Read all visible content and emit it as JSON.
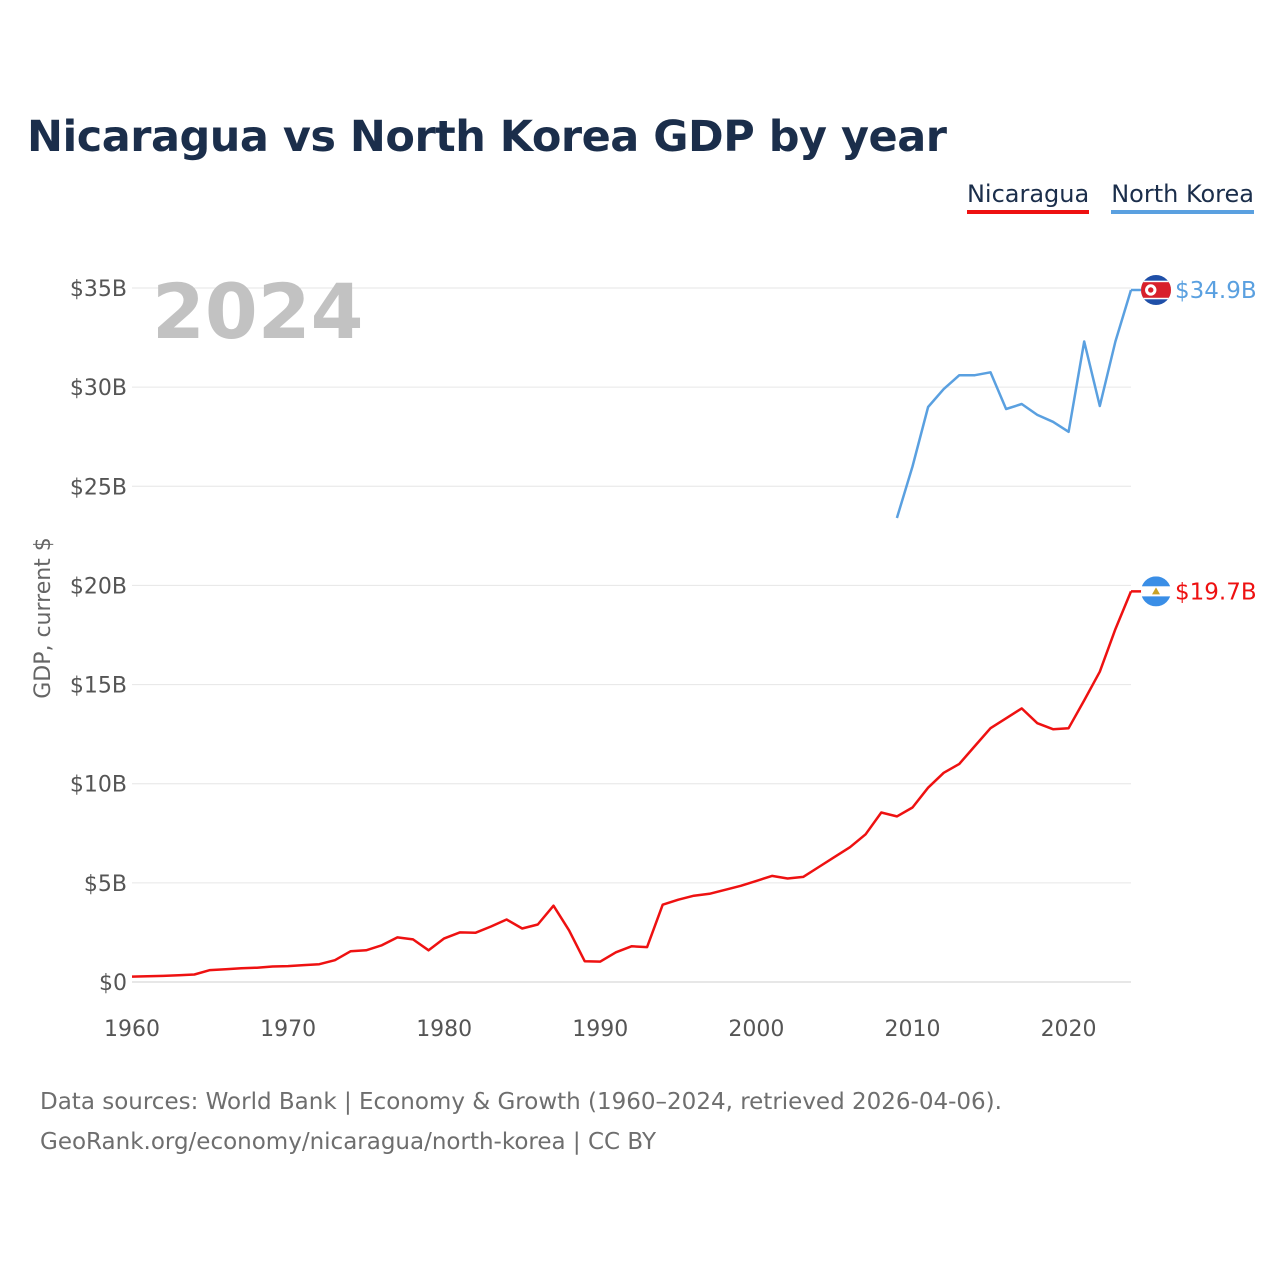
{
  "title": "Nicaragua vs North Korea GDP by year",
  "legend": [
    {
      "label": "Nicaragua",
      "color": "#ee1111"
    },
    {
      "label": "North Korea",
      "color": "#5aa0e0"
    }
  ],
  "footer": {
    "line1": "Data sources: World Bank | Economy & Growth (1960–2024, retrieved 2026-04-06).",
    "line2": "GeoRank.org/economy/nicaragua/north-korea | CC BY"
  },
  "chart_data": {
    "type": "line",
    "title": "Nicaragua vs North Korea GDP by year",
    "xlabel": "",
    "ylabel": "GDP, current $",
    "xlim": [
      1960,
      2024
    ],
    "ylim": [
      0,
      35
    ],
    "yunit": "billions USD",
    "yticks": [
      0,
      5,
      10,
      15,
      20,
      25,
      30,
      35
    ],
    "ytick_labels": [
      "$0",
      "$5B",
      "$10B",
      "$15B",
      "$20B",
      "$25B",
      "$30B",
      "$35B"
    ],
    "xticks": [
      1960,
      1970,
      1980,
      1990,
      2000,
      2010,
      2020
    ],
    "xtick_labels": [
      "1960",
      "1970",
      "1980",
      "1990",
      "2000",
      "2010",
      "2020"
    ],
    "year_display": "2024",
    "grid": true,
    "series": [
      {
        "name": "Nicaragua",
        "color": "#ee1111",
        "end_label": "$19.7B",
        "flag": "nicaragua-flag",
        "x": [
          1960,
          1961,
          1962,
          1963,
          1964,
          1965,
          1966,
          1967,
          1968,
          1969,
          1970,
          1971,
          1972,
          1973,
          1974,
          1975,
          1976,
          1977,
          1978,
          1979,
          1980,
          1981,
          1982,
          1983,
          1984,
          1985,
          1986,
          1987,
          1988,
          1989,
          1990,
          1991,
          1992,
          1993,
          1994,
          1995,
          1996,
          1997,
          1998,
          1999,
          2000,
          2001,
          2002,
          2003,
          2004,
          2005,
          2006,
          2007,
          2008,
          2009,
          2010,
          2011,
          2012,
          2013,
          2014,
          2015,
          2016,
          2017,
          2018,
          2019,
          2020,
          2021,
          2022,
          2023,
          2024
        ],
        "values": [
          0.27,
          0.29,
          0.31,
          0.34,
          0.38,
          0.6,
          0.64,
          0.69,
          0.72,
          0.78,
          0.8,
          0.85,
          0.9,
          1.1,
          1.55,
          1.6,
          1.85,
          2.25,
          2.15,
          1.6,
          2.2,
          2.5,
          2.48,
          2.8,
          3.15,
          2.7,
          2.9,
          3.85,
          2.6,
          1.05,
          1.03,
          1.5,
          1.8,
          1.76,
          3.9,
          4.15,
          4.35,
          4.45,
          4.65,
          4.85,
          5.1,
          5.35,
          5.22,
          5.3,
          5.8,
          6.3,
          6.8,
          7.45,
          8.55,
          8.35,
          8.8,
          9.8,
          10.55,
          11.0,
          11.9,
          12.8,
          13.3,
          13.8,
          13.05,
          12.75,
          12.8,
          14.2,
          15.65,
          17.8,
          19.7
        ]
      },
      {
        "name": "North Korea",
        "color": "#5aa0e0",
        "end_label": "$34.9B",
        "flag": "north-korea-flag",
        "x": [
          2009,
          2010,
          2011,
          2012,
          2013,
          2014,
          2015,
          2016,
          2017,
          2018,
          2019,
          2020,
          2021,
          2022,
          2023,
          2024
        ],
        "values": [
          23.4,
          26.0,
          29.0,
          29.9,
          30.6,
          30.6,
          30.75,
          28.9,
          29.15,
          28.6,
          28.25,
          27.75,
          32.3,
          29.05,
          32.3,
          34.9
        ]
      }
    ]
  }
}
